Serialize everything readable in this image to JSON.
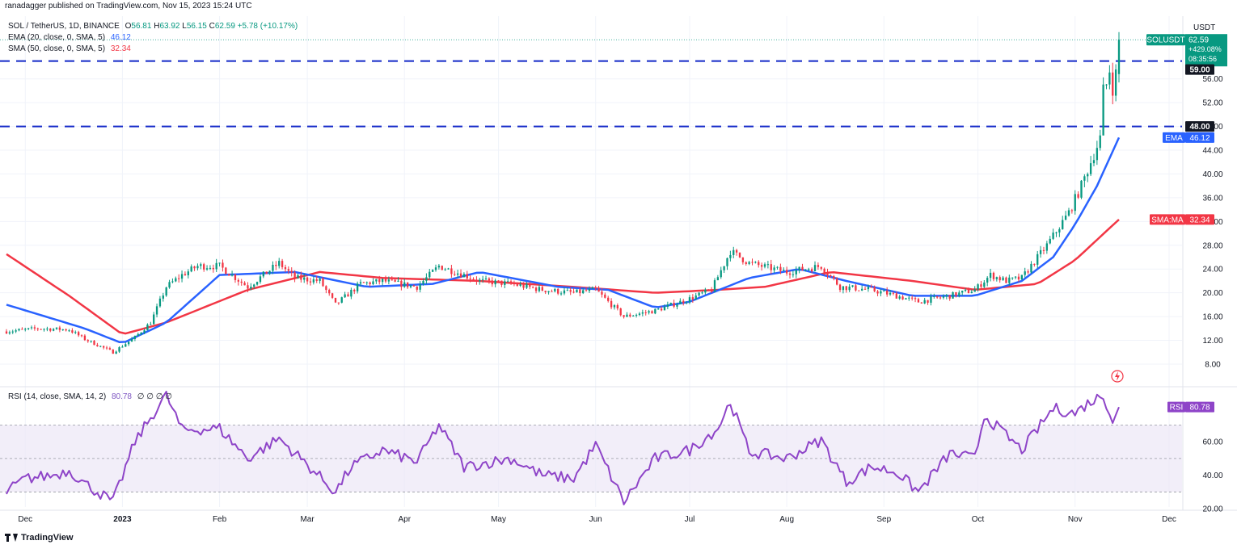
{
  "header": {
    "publisher": "ranadagger published on TradingView.com, Nov 15, 2023 15:24 UTC",
    "symbol_line": "SOL / TetherUS, 1D, BINANCE",
    "o_label": "O",
    "o_value": "56.81",
    "h_label": "H",
    "h_value": "63.92",
    "l_label": "L",
    "l_value": "56.15",
    "c_label": "C",
    "c_value": "62.59",
    "change": "+5.78 (+10.17%)",
    "ema_label": "EMA (20, close, 0, SMA, 5)",
    "ema_value": "46.12",
    "sma_label": "SMA (50, close, 0, SMA, 5)",
    "sma_value": "32.34",
    "rsi_label": "RSI (14, close, SMA, 14, 2)",
    "rsi_value": "80.78",
    "rsi_extra": "∅ ∅ ∅ ∅"
  },
  "footer": {
    "brand": "TradingView"
  },
  "price_axis": {
    "currency": "USDT",
    "ticks": [
      "56.00",
      "52.00",
      "48.00",
      "44.00",
      "40.00",
      "36.00",
      "32.00",
      "28.00",
      "24.00",
      "20.00",
      "16.00",
      "12.00",
      "8.00"
    ],
    "ticks_values": [
      56,
      52,
      48,
      44,
      40,
      36,
      32,
      28,
      24,
      20,
      16,
      12,
      8
    ]
  },
  "rsi_axis": {
    "ticks": [
      "60.00",
      "40.00",
      "20.00"
    ],
    "ticks_values": [
      60,
      40,
      20
    ]
  },
  "badges": {
    "symbol": "SOLUSDT",
    "last_price": "62.59",
    "change_pct": "+429.08%",
    "countdown": "08:35:56",
    "level_59": "59.00",
    "level_48": "48.00",
    "ema_tag": "EMA",
    "ema_value": "46.12",
    "sma_tag": "SMA:MA",
    "sma_value": "32.34",
    "rsi_tag": "RSI",
    "rsi_value": "80.78"
  },
  "colors": {
    "up": "#089981",
    "down": "#f23645",
    "ema": "#2962ff",
    "sma": "#f23645",
    "rsi": "#8e44c8",
    "level": "#1328c8",
    "badge_dark": "#131722",
    "rsi_band": "#ede7f6"
  },
  "chart_data": [
    {
      "type": "candlestick",
      "title": "SOL / TetherUS, 1D, BINANCE",
      "x_labels": [
        "Dec",
        "2023",
        "Feb",
        "Mar",
        "Apr",
        "May",
        "Jun",
        "Jul",
        "Aug",
        "Sep",
        "Oct",
        "Nov",
        "Dec"
      ],
      "x_start": "2022-11-25",
      "ylim": [
        5,
        66
      ],
      "horizontal_levels": [
        59.0,
        48.0
      ],
      "grid": true,
      "close_keypoints": [
        [
          "2022-11-25",
          13.5
        ],
        [
          "2022-12-05",
          14.0
        ],
        [
          "2022-12-15",
          13.8
        ],
        [
          "2022-12-20",
          12.2
        ],
        [
          "2022-12-29",
          10.0
        ],
        [
          "2023-01-05",
          12.5
        ],
        [
          "2023-01-10",
          15.0
        ],
        [
          "2023-01-15",
          21.0
        ],
        [
          "2023-01-20",
          23.0
        ],
        [
          "2023-01-25",
          24.5
        ],
        [
          "2023-02-01",
          24.5
        ],
        [
          "2023-02-10",
          21.0
        ],
        [
          "2023-02-20",
          25.0
        ],
        [
          "2023-02-25",
          22.5
        ],
        [
          "2023-03-05",
          22.0
        ],
        [
          "2023-03-10",
          18.0
        ],
        [
          "2023-03-18",
          21.5
        ],
        [
          "2023-03-25",
          22.0
        ],
        [
          "2023-04-05",
          21.0
        ],
        [
          "2023-04-12",
          24.5
        ],
        [
          "2023-04-20",
          23.0
        ],
        [
          "2023-04-25",
          22.0
        ],
        [
          "2023-05-05",
          21.5
        ],
        [
          "2023-05-15",
          20.5
        ],
        [
          "2023-05-25",
          20.0
        ],
        [
          "2023-06-01",
          20.5
        ],
        [
          "2023-06-05",
          18.5
        ],
        [
          "2023-06-10",
          16.0
        ],
        [
          "2023-06-20",
          17.0
        ],
        [
          "2023-07-01",
          19.0
        ],
        [
          "2023-07-08",
          20.5
        ],
        [
          "2023-07-14",
          27.0
        ],
        [
          "2023-07-20",
          25.0
        ],
        [
          "2023-08-01",
          23.5
        ],
        [
          "2023-08-12",
          24.5
        ],
        [
          "2023-08-18",
          21.0
        ],
        [
          "2023-08-28",
          20.5
        ],
        [
          "2023-09-05",
          19.5
        ],
        [
          "2023-09-12",
          18.5
        ],
        [
          "2023-09-22",
          19.5
        ],
        [
          "2023-09-30",
          20.5
        ],
        [
          "2023-10-05",
          23.0
        ],
        [
          "2023-10-10",
          22.0
        ],
        [
          "2023-10-15",
          22.5
        ],
        [
          "2023-10-23",
          28.0
        ],
        [
          "2023-10-30",
          33.5
        ],
        [
          "2023-11-03",
          38.0
        ],
        [
          "2023-11-06",
          42.0
        ],
        [
          "2023-11-09",
          46.0
        ],
        [
          "2023-11-10",
          54.0
        ],
        [
          "2023-11-11",
          55.0
        ],
        [
          "2023-11-12",
          57.5
        ],
        [
          "2023-11-13",
          54.5
        ],
        [
          "2023-11-14",
          56.81
        ],
        [
          "2023-11-15",
          62.59
        ]
      ],
      "ema20_keypoints": [
        [
          "2022-11-25",
          18.0
        ],
        [
          "2022-12-20",
          14.0
        ],
        [
          "2023-01-01",
          11.5
        ],
        [
          "2023-01-15",
          15.0
        ],
        [
          "2023-02-01",
          23.0
        ],
        [
          "2023-02-25",
          23.5
        ],
        [
          "2023-03-20",
          21.0
        ],
        [
          "2023-04-10",
          21.5
        ],
        [
          "2023-04-25",
          23.5
        ],
        [
          "2023-05-20",
          21.0
        ],
        [
          "2023-06-05",
          20.5
        ],
        [
          "2023-06-20",
          17.5
        ],
        [
          "2023-07-01",
          18.5
        ],
        [
          "2023-07-20",
          22.5
        ],
        [
          "2023-08-05",
          24.0
        ],
        [
          "2023-08-20",
          22.0
        ],
        [
          "2023-09-10",
          19.5
        ],
        [
          "2023-09-30",
          19.5
        ],
        [
          "2023-10-15",
          22.0
        ],
        [
          "2023-10-25",
          26.0
        ],
        [
          "2023-11-01",
          31.5
        ],
        [
          "2023-11-08",
          38.0
        ],
        [
          "2023-11-15",
          46.12
        ]
      ],
      "sma50_keypoints": [
        [
          "2022-11-25",
          26.5
        ],
        [
          "2022-12-15",
          19.5
        ],
        [
          "2023-01-01",
          13.0
        ],
        [
          "2023-01-15",
          15.0
        ],
        [
          "2023-02-10",
          20.5
        ],
        [
          "2023-03-05",
          23.5
        ],
        [
          "2023-03-25",
          22.5
        ],
        [
          "2023-04-25",
          22.0
        ],
        [
          "2023-05-25",
          21.0
        ],
        [
          "2023-06-20",
          20.0
        ],
        [
          "2023-07-10",
          20.5
        ],
        [
          "2023-07-25",
          21.0
        ],
        [
          "2023-08-15",
          23.5
        ],
        [
          "2023-09-10",
          22.0
        ],
        [
          "2023-09-30",
          20.5
        ],
        [
          "2023-10-20",
          21.5
        ],
        [
          "2023-11-01",
          25.5
        ],
        [
          "2023-11-15",
          32.34
        ]
      ]
    },
    {
      "type": "line",
      "title": "RSI (14, close, SMA, 14, 2)",
      "ylim": [
        18,
        90
      ],
      "bands": [
        70,
        50,
        30
      ],
      "keypoints": [
        [
          "2022-11-25",
          30
        ],
        [
          "2022-12-01",
          38
        ],
        [
          "2022-12-10",
          40
        ],
        [
          "2022-12-15",
          43
        ],
        [
          "2022-12-20",
          35
        ],
        [
          "2022-12-29",
          24
        ],
        [
          "2023-01-05",
          60
        ],
        [
          "2023-01-12",
          80
        ],
        [
          "2023-01-15",
          88
        ],
        [
          "2023-01-20",
          67
        ],
        [
          "2023-02-01",
          68
        ],
        [
          "2023-02-10",
          50
        ],
        [
          "2023-02-20",
          62
        ],
        [
          "2023-02-28",
          48
        ],
        [
          "2023-03-10",
          30
        ],
        [
          "2023-03-15",
          45
        ],
        [
          "2023-03-25",
          55
        ],
        [
          "2023-04-05",
          48
        ],
        [
          "2023-04-12",
          70
        ],
        [
          "2023-04-20",
          45
        ],
        [
          "2023-05-05",
          50
        ],
        [
          "2023-05-15",
          40
        ],
        [
          "2023-05-25",
          38
        ],
        [
          "2023-06-01",
          58
        ],
        [
          "2023-06-10",
          24
        ],
        [
          "2023-06-20",
          50
        ],
        [
          "2023-07-01",
          55
        ],
        [
          "2023-07-10",
          68
        ],
        [
          "2023-07-14",
          84
        ],
        [
          "2023-07-20",
          54
        ],
        [
          "2023-08-01",
          50
        ],
        [
          "2023-08-12",
          61
        ],
        [
          "2023-08-20",
          36
        ],
        [
          "2023-08-28",
          45
        ],
        [
          "2023-09-05",
          42
        ],
        [
          "2023-09-12",
          30
        ],
        [
          "2023-09-22",
          53
        ],
        [
          "2023-09-30",
          50
        ],
        [
          "2023-10-03",
          76
        ],
        [
          "2023-10-15",
          55
        ],
        [
          "2023-10-25",
          80
        ],
        [
          "2023-11-01",
          77
        ],
        [
          "2023-11-05",
          83
        ],
        [
          "2023-11-10",
          88
        ],
        [
          "2023-11-13",
          73
        ],
        [
          "2023-11-15",
          80.78
        ]
      ]
    }
  ]
}
